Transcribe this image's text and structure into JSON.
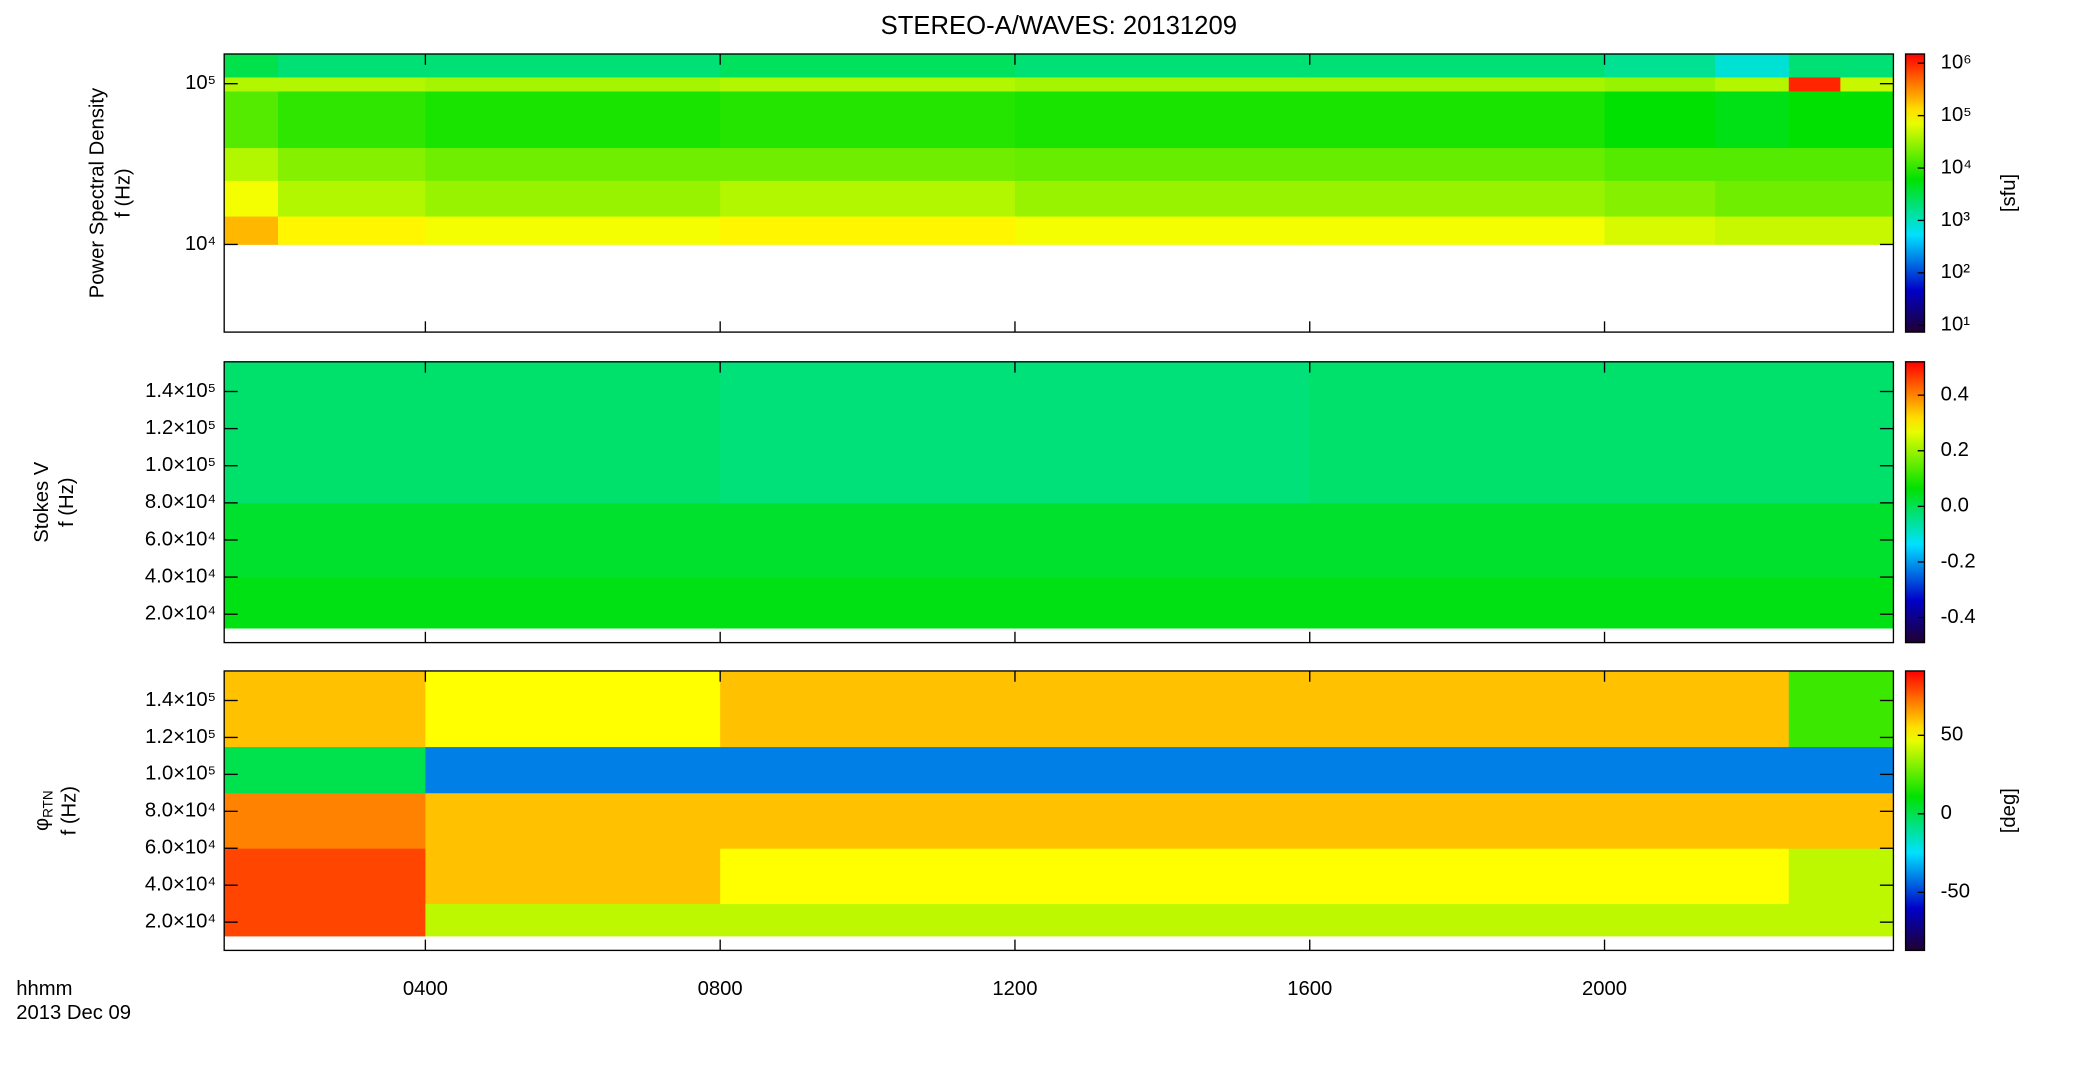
{
  "title": "STEREO-A/WAVES: 20131209",
  "chart_data": [
    {
      "type": "heatmap",
      "ylabel": "Power Spectral Density",
      "ylabel2": "f (Hz)",
      "ylog": true,
      "ylim": [
        2850,
        153000
      ],
      "yticks": [
        {
          "value": 10000,
          "label": "10⁴"
        },
        {
          "value": 100000,
          "label": "10⁵"
        }
      ],
      "xlim": [
        1.27,
        23.92
      ],
      "x_edges": [
        1.27,
        2,
        4,
        8,
        12,
        16,
        20,
        21.5,
        22.5,
        23.2,
        23.92
      ],
      "y_edges": [
        10000,
        15000,
        25000,
        40000,
        90000,
        110000,
        153000
      ],
      "z": [
        [
          200000,
          100000,
          80000,
          100000,
          80000,
          80000,
          60000,
          50000,
          50000,
          50000
        ],
        [
          80000,
          40000,
          30000,
          40000,
          30000,
          30000,
          25000,
          20000,
          20000,
          20000
        ],
        [
          40000,
          25000,
          20000,
          20000,
          18000,
          18000,
          15000,
          15000,
          15000,
          15000
        ],
        [
          15000,
          10000,
          8000,
          9000,
          8000,
          8000,
          6000,
          5000,
          6000,
          6000
        ],
        [
          40000,
          40000,
          35000,
          40000,
          35000,
          35000,
          30000,
          40000,
          1000000,
          50000
        ],
        [
          3000,
          2000,
          2000,
          2500,
          2000,
          2000,
          1500,
          800,
          2000,
          2000
        ]
      ],
      "clog": true,
      "clim": [
        7.4,
        1500000
      ],
      "cticks": [
        {
          "value": 10,
          "label": "10¹"
        },
        {
          "value": 100,
          "label": "10²"
        },
        {
          "value": 1000,
          "label": "10³"
        },
        {
          "value": 10000,
          "label": "10⁴"
        },
        {
          "value": 100000,
          "label": "10⁵"
        },
        {
          "value": 1000000,
          "label": "10⁶"
        }
      ],
      "clabel": "[sfu]"
    },
    {
      "type": "heatmap",
      "ylabel": "Stokes V",
      "ylabel2": "f (Hz)",
      "ylog": false,
      "ylim": [
        4700,
        156000
      ],
      "yticks": [
        {
          "value": 20000,
          "label": "2.0×10⁴"
        },
        {
          "value": 40000,
          "label": "4.0×10⁴"
        },
        {
          "value": 60000,
          "label": "6.0×10⁴"
        },
        {
          "value": 80000,
          "label": "8.0×10⁴"
        },
        {
          "value": 100000,
          "label": "1.0×10⁵"
        },
        {
          "value": 120000,
          "label": "1.2×10⁵"
        },
        {
          "value": 140000,
          "label": "1.4×10⁵"
        }
      ],
      "xlim": [
        1.27,
        23.92
      ],
      "x_edges": [
        1.27,
        8,
        16,
        23.92
      ],
      "y_edges": [
        12500,
        40000,
        80000,
        156000
      ],
      "z": [
        [
          0.05,
          0.05,
          0.05
        ],
        [
          0.03,
          0.03,
          0.03
        ],
        [
          -0.02,
          -0.03,
          -0.02
        ]
      ],
      "clog": false,
      "clim": [
        -0.49,
        0.52
      ],
      "cticks": [
        -0.4,
        -0.2,
        {
          "value": 0,
          "label": "0.0"
        },
        0.2,
        0.4
      ]
    },
    {
      "type": "heatmap",
      "ylabel": "φ",
      "ylabel_sub": "RTN",
      "ylabel2": "f (Hz)",
      "ylog": false,
      "ylim": [
        4700,
        156000
      ],
      "yticks": [
        {
          "value": 20000,
          "label": "2.0×10⁴"
        },
        {
          "value": 40000,
          "label": "4.0×10⁴"
        },
        {
          "value": 60000,
          "label": "6.0×10⁴"
        },
        {
          "value": 80000,
          "label": "8.0×10⁴"
        },
        {
          "value": 100000,
          "label": "1.0×10⁵"
        },
        {
          "value": 120000,
          "label": "1.2×10⁵"
        },
        {
          "value": 140000,
          "label": "1.4×10⁵"
        }
      ],
      "xlim": [
        1.27,
        23.92
      ],
      "x_edges": [
        1.27,
        4,
        8,
        12,
        16,
        20,
        22.5,
        23.92
      ],
      "y_edges": [
        12500,
        30000,
        60000,
        90000,
        115000,
        156000
      ],
      "z": [
        [
          80,
          40,
          40,
          40,
          40,
          40,
          40
        ],
        [
          80,
          60,
          50,
          50,
          50,
          50,
          40
        ],
        [
          70,
          60,
          60,
          60,
          60,
          60,
          60
        ],
        [
          0,
          -40,
          -40,
          -40,
          -40,
          -40,
          -40
        ],
        [
          60,
          50,
          60,
          60,
          60,
          60,
          20
        ]
      ],
      "clog": false,
      "clim": [
        -87,
        91
      ],
      "cticks": [
        -50,
        0,
        50
      ],
      "clabel": "[deg]",
      "xlabel": "hhmm",
      "xlabel2": "2013 Dec 09",
      "xticks": [
        {
          "value": 4,
          "label": "0400"
        },
        {
          "value": 8,
          "label": "0800"
        },
        {
          "value": 12,
          "label": "1200"
        },
        {
          "value": 16,
          "label": "1600"
        },
        {
          "value": 20,
          "label": "2000"
        }
      ]
    }
  ]
}
